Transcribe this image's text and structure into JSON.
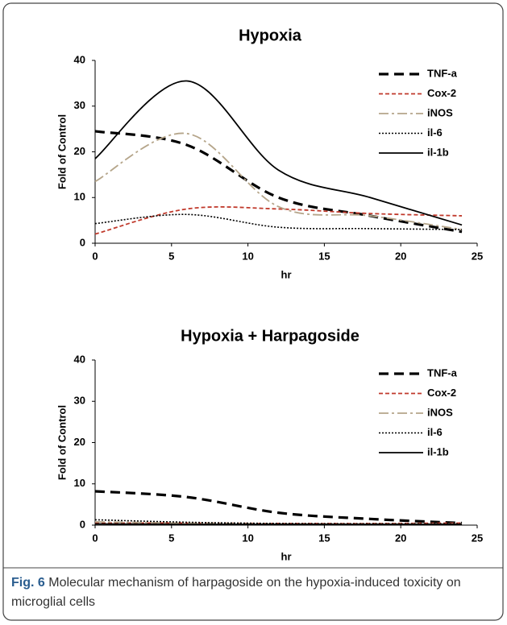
{
  "chart_data": [
    {
      "type": "line",
      "title": "Hypoxia",
      "x_label": "hr",
      "y_label": "Fold of Control",
      "x": [
        0,
        6,
        12,
        18,
        24
      ],
      "xlim": [
        0,
        25
      ],
      "xticks": [
        0,
        5,
        10,
        15,
        20,
        25
      ],
      "ylim": [
        0,
        40
      ],
      "yticks": [
        0,
        10,
        20,
        30,
        40
      ],
      "grid": false,
      "legend": "upper right",
      "series": [
        {
          "name": "TNF-a",
          "color": "#000000",
          "style": "dashed",
          "values": [
            24.5,
            21.5,
            10,
            6,
            2.5
          ]
        },
        {
          "name": "Cox-2",
          "color": "#c0392b",
          "style": "short-dashed",
          "values": [
            2,
            7.5,
            7.5,
            6.5,
            6
          ]
        },
        {
          "name": "iNOS",
          "color": "#b5a58a",
          "style": "dash-dot",
          "values": [
            13.5,
            24,
            8,
            6,
            3
          ]
        },
        {
          "name": "il-6",
          "color": "#000000",
          "style": "dotted",
          "values": [
            4.3,
            6.3,
            3.5,
            3.2,
            3
          ]
        },
        {
          "name": "il-1b",
          "color": "#000000",
          "style": "solid",
          "values": [
            18.5,
            35.5,
            16,
            10,
            4
          ]
        }
      ]
    },
    {
      "type": "line",
      "title": "Hypoxia + Harpagoside",
      "x_label": "hr",
      "y_label": "Fold of Control",
      "x": [
        0,
        6,
        12,
        18,
        24
      ],
      "xlim": [
        0,
        25
      ],
      "xticks": [
        0,
        5,
        10,
        15,
        20,
        25
      ],
      "ylim": [
        0,
        40
      ],
      "yticks": [
        0,
        10,
        20,
        30,
        40
      ],
      "grid": false,
      "legend": "upper right",
      "series": [
        {
          "name": "TNF-a",
          "color": "#000000",
          "style": "dashed",
          "values": [
            8.2,
            6.8,
            3,
            1.5,
            0.5
          ]
        },
        {
          "name": "Cox-2",
          "color": "#c0392b",
          "style": "short-dashed",
          "values": [
            0.5,
            0.5,
            0.4,
            0.4,
            0.5
          ]
        },
        {
          "name": "iNOS",
          "color": "#b5a58a",
          "style": "dash-dot",
          "values": [
            0.8,
            0.5,
            0.3,
            0.3,
            0.3
          ]
        },
        {
          "name": "il-6",
          "color": "#000000",
          "style": "dotted",
          "values": [
            1.3,
            0.7,
            0.4,
            0.3,
            0.3
          ]
        },
        {
          "name": "il-1b",
          "color": "#000000",
          "style": "solid",
          "values": [
            0.3,
            0.2,
            0.2,
            0.2,
            0.2
          ]
        }
      ]
    }
  ],
  "caption": {
    "label": "Fig. 6",
    "text": "Molecular mechanism of harpagoside on the hypoxia-induced toxicity on microglial cells"
  }
}
